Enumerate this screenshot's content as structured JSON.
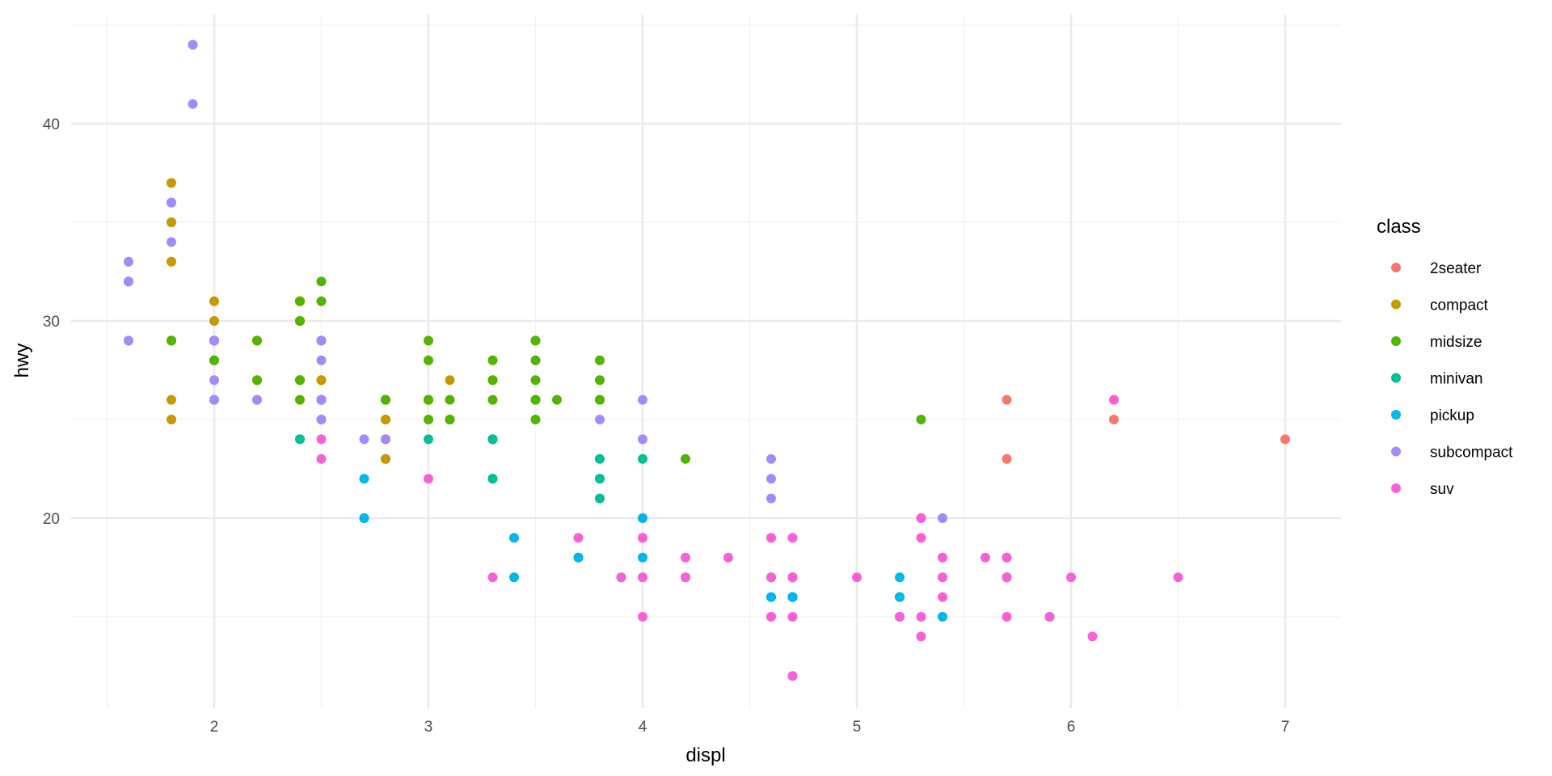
{
  "chart_data": {
    "type": "scatter",
    "title": "",
    "xlabel": "displ",
    "ylabel": "hwy",
    "xlim": [
      1.33,
      7.27
    ],
    "ylim": [
      10.4,
      45.6
    ],
    "x_ticks": [
      2,
      3,
      4,
      5,
      6,
      7
    ],
    "y_ticks": [
      20,
      30,
      40
    ],
    "x_minor": [
      1.5,
      2.5,
      3.5,
      4.5,
      5.5,
      6.5
    ],
    "y_minor": [
      15,
      25,
      35,
      45
    ],
    "grid": true,
    "legend": {
      "title": "class",
      "position": "right",
      "entries": [
        {
          "label": "2seater",
          "color": "#F8766D"
        },
        {
          "label": "compact",
          "color": "#C49A00"
        },
        {
          "label": "midsize",
          "color": "#53B400"
        },
        {
          "label": "minivan",
          "color": "#00C094"
        },
        {
          "label": "pickup",
          "color": "#00B6EB"
        },
        {
          "label": "subcompact",
          "color": "#A58AFF"
        },
        {
          "label": "suv",
          "color": "#FB61D7"
        }
      ]
    },
    "series": [
      {
        "name": "2seater",
        "points": [
          [
            5.7,
            26
          ],
          [
            5.7,
            23
          ],
          [
            6.2,
            26
          ],
          [
            6.2,
            25
          ],
          [
            7.0,
            24
          ]
        ]
      },
      {
        "name": "compact",
        "points": [
          [
            1.8,
            29
          ],
          [
            1.8,
            29
          ],
          [
            2.0,
            31
          ],
          [
            2.0,
            30
          ],
          [
            2.8,
            26
          ],
          [
            2.8,
            26
          ],
          [
            3.1,
            27
          ],
          [
            1.8,
            26
          ],
          [
            1.8,
            25
          ],
          [
            2.0,
            28
          ],
          [
            2.0,
            28
          ],
          [
            2.8,
            25
          ],
          [
            2.8,
            25
          ],
          [
            3.1,
            25
          ],
          [
            3.1,
            25
          ],
          [
            2.2,
            27
          ],
          [
            2.2,
            29
          ],
          [
            2.4,
            31
          ],
          [
            2.4,
            31
          ],
          [
            3.0,
            26
          ],
          [
            3.0,
            26
          ],
          [
            3.3,
            27
          ],
          [
            1.8,
            37
          ],
          [
            1.8,
            35
          ],
          [
            1.8,
            33
          ],
          [
            1.8,
            35
          ],
          [
            2.0,
            29
          ],
          [
            2.0,
            29
          ],
          [
            2.8,
            23
          ],
          [
            2.8,
            24
          ],
          [
            1.9,
            44
          ],
          [
            2.0,
            29
          ],
          [
            2.0,
            26
          ],
          [
            2.0,
            29
          ],
          [
            2.0,
            29
          ],
          [
            2.5,
            29
          ],
          [
            2.5,
            29
          ],
          [
            2.8,
            23
          ],
          [
            2.8,
            24
          ],
          [
            1.8,
            29
          ],
          [
            2.0,
            28
          ],
          [
            2.4,
            27
          ],
          [
            2.4,
            30
          ],
          [
            2.4,
            31
          ],
          [
            2.5,
            26
          ],
          [
            2.5,
            27
          ],
          [
            2.2,
            26
          ],
          [
            2.2,
            29
          ],
          [
            2.4,
            27
          ],
          [
            2.4,
            31
          ],
          [
            3.0,
            26
          ],
          [
            3.0,
            26
          ],
          [
            2.5,
            25
          ],
          [
            2.5,
            27
          ]
        ]
      },
      {
        "name": "midsize",
        "points": [
          [
            2.4,
            24
          ],
          [
            2.4,
            27
          ],
          [
            3.1,
            26
          ],
          [
            3.5,
            26
          ],
          [
            3.6,
            26
          ],
          [
            2.4,
            27
          ],
          [
            3.0,
            25
          ],
          [
            3.3,
            28
          ],
          [
            3.3,
            27
          ],
          [
            2.5,
            31
          ],
          [
            2.5,
            32
          ],
          [
            3.5,
            29
          ],
          [
            3.5,
            27
          ],
          [
            3.5,
            28
          ],
          [
            3.0,
            26
          ],
          [
            3.0,
            26
          ],
          [
            3.5,
            26
          ],
          [
            3.5,
            25
          ],
          [
            3.8,
            28
          ],
          [
            3.8,
            26
          ],
          [
            3.8,
            27
          ],
          [
            4.2,
            23
          ],
          [
            2.4,
            30
          ],
          [
            2.4,
            30
          ],
          [
            3.0,
            29
          ],
          [
            3.0,
            28
          ],
          [
            2.0,
            29
          ],
          [
            2.0,
            28
          ],
          [
            2.8,
            26
          ],
          [
            2.8,
            26
          ],
          [
            3.1,
            25
          ],
          [
            1.8,
            29
          ],
          [
            5.3,
            25
          ],
          [
            2.5,
            26
          ],
          [
            3.5,
            29
          ],
          [
            2.2,
            27
          ],
          [
            2.2,
            29
          ],
          [
            2.4,
            26
          ],
          [
            2.4,
            31
          ],
          [
            2.5,
            26
          ],
          [
            3.3,
            26
          ],
          [
            3.8,
            26
          ]
        ]
      },
      {
        "name": "minivan",
        "points": [
          [
            2.4,
            24
          ],
          [
            3.0,
            24
          ],
          [
            3.3,
            22
          ],
          [
            3.3,
            22
          ],
          [
            3.3,
            24
          ],
          [
            3.3,
            24
          ],
          [
            3.3,
            24
          ],
          [
            3.8,
            22
          ],
          [
            3.8,
            22
          ],
          [
            3.8,
            21
          ],
          [
            4.0,
            23
          ],
          [
            3.8,
            23
          ]
        ]
      },
      {
        "name": "pickup",
        "points": [
          [
            2.7,
            20
          ],
          [
            2.7,
            20
          ],
          [
            2.7,
            22
          ],
          [
            3.4,
            17
          ],
          [
            3.4,
            19
          ],
          [
            4.0,
            18
          ],
          [
            4.0,
            20
          ],
          [
            4.7,
            16
          ],
          [
            4.7,
            16
          ],
          [
            4.7,
            17
          ],
          [
            5.2,
            15
          ],
          [
            5.2,
            16
          ],
          [
            5.7,
            17
          ],
          [
            5.9,
            15
          ],
          [
            4.7,
            17
          ],
          [
            4.7,
            17
          ],
          [
            4.7,
            16
          ],
          [
            4.7,
            16
          ],
          [
            5.2,
            17
          ],
          [
            5.2,
            15
          ],
          [
            3.7,
            18
          ],
          [
            3.7,
            18
          ],
          [
            3.9,
            17
          ],
          [
            4.7,
            17
          ],
          [
            4.7,
            17
          ],
          [
            4.7,
            16
          ],
          [
            5.2,
            16
          ],
          [
            5.7,
            17
          ],
          [
            4.0,
            17
          ],
          [
            4.6,
            16
          ],
          [
            4.6,
            17
          ],
          [
            4.6,
            17
          ],
          [
            5.4,
            15
          ],
          [
            4.2,
            17
          ],
          [
            4.2,
            17
          ],
          [
            4.6,
            16
          ],
          [
            4.6,
            15
          ]
        ]
      },
      {
        "name": "subcompact",
        "points": [
          [
            1.9,
            41
          ],
          [
            1.6,
            33
          ],
          [
            1.6,
            32
          ],
          [
            1.6,
            32
          ],
          [
            1.6,
            29
          ],
          [
            1.6,
            32
          ],
          [
            1.8,
            34
          ],
          [
            1.8,
            36
          ],
          [
            1.8,
            36
          ],
          [
            2.0,
            29
          ],
          [
            2.0,
            26
          ],
          [
            2.0,
            27
          ],
          [
            2.5,
            26
          ],
          [
            2.5,
            28
          ],
          [
            2.5,
            29
          ],
          [
            2.5,
            29
          ],
          [
            2.2,
            26
          ],
          [
            2.7,
            24
          ],
          [
            3.8,
            25
          ],
          [
            4.0,
            24
          ],
          [
            4.0,
            26
          ],
          [
            4.6,
            21
          ],
          [
            4.6,
            22
          ],
          [
            4.6,
            23
          ],
          [
            5.4,
            20
          ],
          [
            2.5,
            25
          ],
          [
            2.5,
            26
          ],
          [
            2.0,
            26
          ],
          [
            2.8,
            24
          ],
          [
            1.9,
            44
          ],
          [
            1.6,
            29
          ]
        ]
      },
      {
        "name": "suv",
        "points": [
          [
            5.3,
            20
          ],
          [
            5.3,
            15
          ],
          [
            5.3,
            20
          ],
          [
            5.7,
            17
          ],
          [
            6.0,
            17
          ],
          [
            5.7,
            15
          ],
          [
            5.7,
            18
          ],
          [
            6.2,
            26
          ],
          [
            6.5,
            17
          ],
          [
            4.7,
            17
          ],
          [
            4.7,
            12
          ],
          [
            4.7,
            17
          ],
          [
            4.7,
            19
          ],
          [
            5.2,
            15
          ],
          [
            5.7,
            18
          ],
          [
            5.9,
            15
          ],
          [
            4.0,
            17
          ],
          [
            4.2,
            17
          ],
          [
            4.6,
            17
          ],
          [
            4.6,
            15
          ],
          [
            5.4,
            17
          ],
          [
            5.4,
            16
          ],
          [
            5.4,
            18
          ],
          [
            4.0,
            19
          ],
          [
            4.0,
            17
          ],
          [
            4.6,
            19
          ],
          [
            5.0,
            17
          ],
          [
            4.2,
            18
          ],
          [
            4.4,
            18
          ],
          [
            4.6,
            19
          ],
          [
            5.4,
            17
          ],
          [
            5.4,
            18
          ],
          [
            4.0,
            15
          ],
          [
            4.7,
            17
          ],
          [
            4.7,
            19
          ],
          [
            4.7,
            15
          ],
          [
            5.7,
            17
          ],
          [
            6.1,
            14
          ],
          [
            5.3,
            19
          ],
          [
            5.3,
            14
          ],
          [
            2.5,
            23
          ],
          [
            2.5,
            24
          ],
          [
            3.3,
            17
          ],
          [
            3.7,
            19
          ],
          [
            3.9,
            17
          ],
          [
            4.7,
            12
          ],
          [
            5.6,
            18
          ],
          [
            4.0,
            19
          ],
          [
            3.0,
            22
          ]
        ]
      }
    ]
  },
  "plot": {
    "x_tick_labels": [
      "2",
      "3",
      "4",
      "5",
      "6",
      "7"
    ],
    "y_tick_labels": [
      "20",
      "30",
      "40"
    ],
    "xlabel": "displ",
    "ylabel": "hwy",
    "legend_title": "class",
    "colors": {
      "grid_major": "#EBEBEB",
      "grid_minor": "#F2F2F2",
      "tick_text": "#4D4D4D",
      "background": "#FFFFFF"
    }
  }
}
